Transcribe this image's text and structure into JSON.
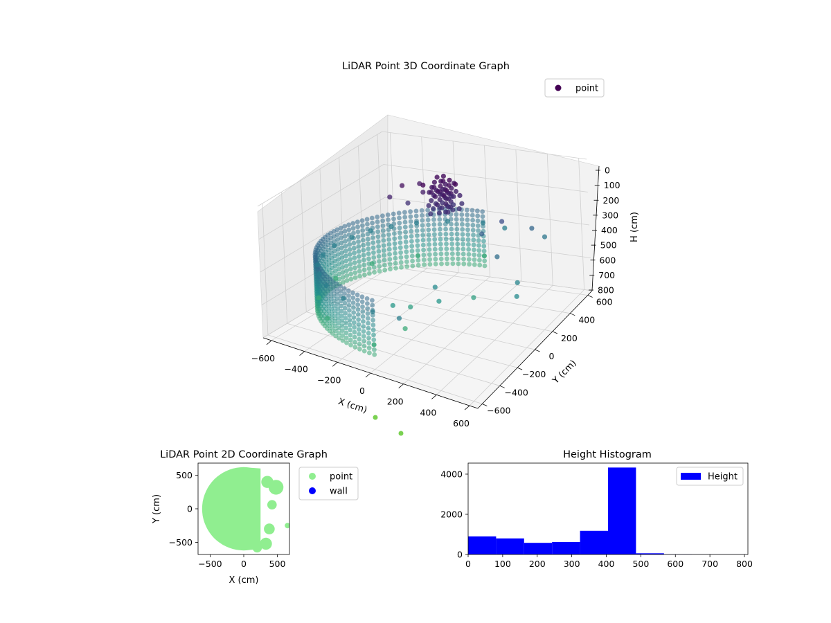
{
  "chart_data": [
    {
      "type": "scatter",
      "projection": "3d",
      "title": "LiDAR Point 3D Coordinate Graph",
      "xlabel": "X (cm)",
      "ylabel": "Y (cm)",
      "zlabel": "H (cm)",
      "xticks": [
        "−600",
        "−400",
        "−200",
        "0",
        "200",
        "400",
        "600"
      ],
      "yticks": [
        "−600",
        "−400",
        "−200",
        "0",
        "200",
        "400",
        "600"
      ],
      "zticks": [
        "0",
        "100",
        "200",
        "300",
        "400",
        "500",
        "600",
        "700",
        "800"
      ],
      "xlim": [
        -650,
        650
      ],
      "ylim": [
        -650,
        650
      ],
      "zlim": [
        0,
        800
      ],
      "z_inverted": true,
      "colormap": "viridis",
      "grid": true,
      "legend": {
        "position": "upper-right",
        "entries": [
          {
            "name": "point",
            "color": "#440154"
          }
        ]
      },
      "series": [
        {
          "name": "point",
          "description_of_shape": "dense half-cylinder wall of radius ~600 cm spanning negative X, heights ~400-700 cm, with a cluster of dark points near the top and scattered points toward positive X/Y",
          "points": [
            [
              -580,
              0,
              450
            ],
            [
              -560,
              150,
              450
            ],
            [
              -560,
              -150,
              450
            ],
            [
              -520,
              280,
              450
            ],
            [
              -520,
              -280,
              450
            ],
            [
              -450,
              380,
              450
            ],
            [
              -450,
              -380,
              450
            ],
            [
              -350,
              480,
              450
            ],
            [
              -350,
              -480,
              450
            ],
            [
              -200,
              560,
              450
            ],
            [
              -200,
              -560,
              450
            ],
            [
              0,
              600,
              450
            ],
            [
              0,
              -600,
              450
            ],
            [
              150,
              580,
              450
            ],
            [
              150,
              -580,
              450
            ],
            [
              -580,
              0,
              650
            ],
            [
              -520,
              280,
              650
            ],
            [
              -520,
              -280,
              650
            ],
            [
              -350,
              480,
              650
            ],
            [
              -350,
              -480,
              650
            ],
            [
              0,
              600,
              650
            ],
            [
              0,
              -600,
              650
            ],
            [
              -200,
              100,
              40
            ],
            [
              -150,
              200,
              60
            ],
            [
              -100,
              150,
              80
            ],
            [
              -250,
              50,
              100
            ],
            [
              -180,
              120,
              150
            ],
            [
              300,
              300,
              250
            ],
            [
              400,
              450,
              350
            ],
            [
              450,
              500,
              420
            ],
            [
              200,
              250,
              320
            ],
            [
              350,
              150,
              380
            ],
            [
              100,
              -100,
              500
            ],
            [
              150,
              -150,
              550
            ],
            [
              250,
              50,
              600
            ],
            [
              -50,
              -300,
              560
            ],
            [
              0,
              -200,
              600
            ],
            [
              50,
              -350,
              650
            ],
            [
              500,
              100,
              480
            ],
            [
              550,
              0,
              500
            ]
          ]
        }
      ]
    },
    {
      "type": "scatter",
      "title": "LiDAR Point 2D Coordinate Graph",
      "xlabel": "X (cm)",
      "ylabel": "Y (cm)",
      "xticks": [
        "−500",
        "0",
        "500"
      ],
      "yticks": [
        "500",
        "0",
        "−500"
      ],
      "xlim": [
        -680,
        680
      ],
      "ylim": [
        -680,
        680
      ],
      "legend": {
        "position": "outside-right",
        "entries": [
          {
            "name": "point",
            "color": "#90ee90"
          },
          {
            "name": "wall",
            "color": "#0000ff"
          }
        ]
      },
      "series": [
        {
          "name": "point",
          "color": "#90ee90",
          "shape": "filled half-disc of radius ~600 cm over negative X plus blobs toward positive X"
        },
        {
          "name": "wall",
          "color": "#0000ff",
          "points": []
        }
      ]
    },
    {
      "type": "bar",
      "subtype": "histogram",
      "title": "Height Histogram",
      "xlabel": "",
      "ylabel": "",
      "xticks": [
        "0",
        "100",
        "200",
        "300",
        "400",
        "500",
        "600",
        "700",
        "800"
      ],
      "yticks": [
        "0",
        "2000",
        "4000"
      ],
      "xlim": [
        0,
        810
      ],
      "ylim": [
        0,
        4550
      ],
      "legend": {
        "position": "upper-right",
        "entries": [
          {
            "name": "Height",
            "color": "#0000ff"
          }
        ]
      },
      "bin_edges": [
        0,
        81,
        162,
        243,
        324,
        405,
        486,
        567,
        648,
        729,
        810
      ],
      "values": [
        900,
        800,
        580,
        620,
        1180,
        4330,
        60,
        10,
        5,
        5
      ],
      "color": "#0000ff"
    }
  ],
  "colors": {
    "bar": "#0000ff",
    "scatter_2d": "#90ee90",
    "wall": "#0000ff",
    "pane": "#f2f2f2"
  }
}
